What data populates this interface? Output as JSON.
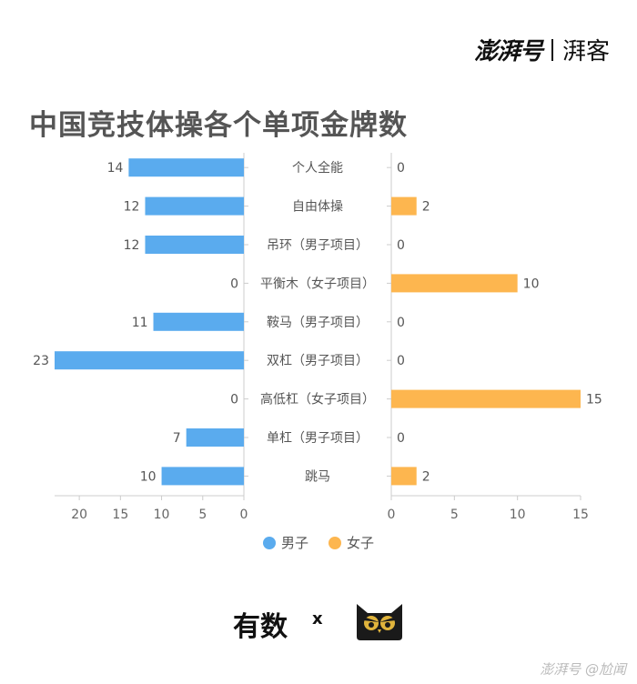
{
  "brand": {
    "logo": "澎湃号",
    "channel": "湃客"
  },
  "footer": {
    "logo_left": "有数",
    "times": "x",
    "watermark": "澎湃号 @尬闻"
  },
  "chart_data": {
    "type": "bar",
    "title": "中国竞技体操各个单项金牌数",
    "categories": [
      "个人全能",
      "自由体操",
      "吊环（男子项目）",
      "平衡木（女子项目）",
      "鞍马（男子项目）",
      "双杠（男子项目）",
      "高低杠（女子项目）",
      "单杠（男子项目）",
      "跳马"
    ],
    "series": [
      {
        "name": "男子",
        "color": "#5aabee",
        "values": [
          14,
          12,
          12,
          0,
          11,
          23,
          0,
          7,
          10
        ]
      },
      {
        "name": "女子",
        "color": "#fdb64f",
        "values": [
          0,
          2,
          0,
          10,
          0,
          0,
          15,
          0,
          2
        ]
      }
    ],
    "left_axis": {
      "ticks": [
        20,
        15,
        10,
        5,
        0
      ],
      "range": [
        0,
        23
      ]
    },
    "right_axis": {
      "ticks": [
        0,
        5,
        10,
        15
      ],
      "range": [
        0,
        15
      ]
    },
    "legend_position": "bottom-center",
    "grid": false
  }
}
